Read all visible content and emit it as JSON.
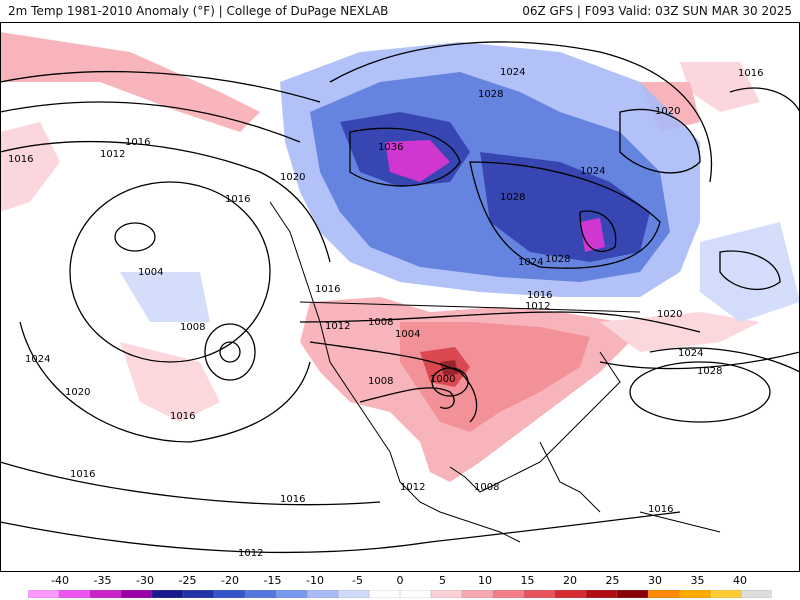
{
  "header": {
    "title_left": "2m Temp 1981-2010 Anomaly (°F) | College of DuPage NEXLAB",
    "title_right": "06Z GFS | F093 Valid: 03Z SUN MAR 30 2025"
  },
  "isobar_labels": [
    "1016",
    "1012",
    "1016",
    "1020",
    "1016",
    "1004",
    "1008",
    "1024",
    "1020",
    "1016",
    "1016",
    "1016",
    "1012",
    "1008",
    "1004",
    "1008",
    "1000",
    "1036",
    "1024",
    "1028",
    "1028",
    "1024",
    "1024",
    "1028",
    "1016",
    "1012",
    "1020",
    "1016",
    "1020",
    "1024",
    "1028",
    "1012",
    "1008",
    "1016",
    "1016",
    "1012"
  ],
  "colorbar": {
    "ticks": [
      "-40",
      "-35",
      "-30",
      "-25",
      "-20",
      "-15",
      "-10",
      "-5",
      "0",
      "5",
      "10",
      "15",
      "20",
      "25",
      "30",
      "35",
      "40"
    ],
    "colors": [
      "#ff99ff",
      "#ee55ee",
      "#cc22cc",
      "#9900aa",
      "#1a1a8c",
      "#2233aa",
      "#3355cc",
      "#5577dd",
      "#7799ee",
      "#aabbf7",
      "#cfdafb",
      "#ffffff",
      "#ffffff",
      "#fbd0d6",
      "#f7a8b0",
      "#f27e88",
      "#e8525c",
      "#d42a32",
      "#b00e14",
      "#880008",
      "#ff8800",
      "#ffaa00",
      "#ffcc33",
      "#dddddd"
    ]
  },
  "colors": {
    "cold": "#3355cc",
    "warm": "#f27e88",
    "land_line": "#000000"
  }
}
